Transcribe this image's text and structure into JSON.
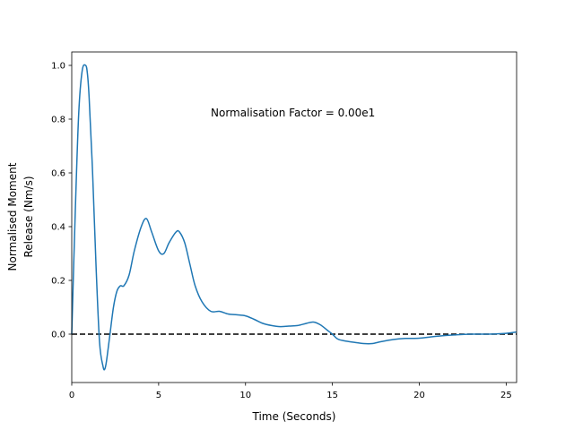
{
  "chart_data": {
    "type": "line",
    "title": "",
    "xlabel": "Time (Seconds)",
    "ylabel_lines": [
      "Normalised Moment",
      "Release (Nm/s)"
    ],
    "xlim": [
      0,
      25.6
    ],
    "ylim": [
      -0.18,
      1.05
    ],
    "xticks": [
      0,
      5,
      10,
      15,
      20,
      25
    ],
    "yticks": [
      0.0,
      0.2,
      0.4,
      0.6,
      0.8,
      1.0
    ],
    "ytick_labels": [
      "0.0",
      "0.2",
      "0.4",
      "0.6",
      "0.8",
      "1.0"
    ],
    "annotation": {
      "text": "Normalisation Factor = 0.00e1",
      "x": 8.0,
      "y": 0.81
    },
    "reference_line": {
      "y": 0.0,
      "style": "dashed",
      "color": "#000000"
    },
    "grid": false,
    "series": [
      {
        "color": "#1f77b4",
        "x": [
          0,
          0.2,
          0.4,
          0.6,
          0.8,
          0.9,
          1.0,
          1.2,
          1.4,
          1.6,
          1.8,
          1.9,
          2.0,
          2.2,
          2.4,
          2.6,
          2.8,
          3.0,
          3.3,
          3.6,
          4.0,
          4.3,
          4.6,
          5.0,
          5.3,
          5.6,
          6.0,
          6.2,
          6.5,
          6.8,
          7.1,
          7.5,
          8.0,
          8.5,
          9.0,
          9.5,
          10.0,
          10.5,
          11.0,
          11.5,
          12.0,
          12.5,
          13.0,
          13.5,
          13.9,
          14.3,
          14.7,
          15.0,
          15.3,
          15.7,
          16.2,
          16.8,
          17.3,
          17.8,
          18.5,
          19.2,
          20.0,
          21.0,
          22.0,
          23.0,
          24.0,
          25.0,
          25.6
        ],
        "y": [
          0.0,
          0.45,
          0.82,
          0.98,
          1.0,
          0.97,
          0.88,
          0.6,
          0.25,
          -0.03,
          -0.12,
          -0.13,
          -0.1,
          0.0,
          0.1,
          0.16,
          0.18,
          0.18,
          0.22,
          0.31,
          0.4,
          0.43,
          0.38,
          0.31,
          0.3,
          0.34,
          0.38,
          0.38,
          0.34,
          0.26,
          0.18,
          0.12,
          0.085,
          0.085,
          0.075,
          0.072,
          0.068,
          0.055,
          0.04,
          0.032,
          0.028,
          0.03,
          0.032,
          0.04,
          0.045,
          0.035,
          0.015,
          0.0,
          -0.018,
          -0.025,
          -0.03,
          -0.035,
          -0.035,
          -0.028,
          -0.02,
          -0.016,
          -0.015,
          -0.008,
          -0.003,
          0.0,
          0.0,
          0.003,
          0.008
        ]
      }
    ]
  }
}
